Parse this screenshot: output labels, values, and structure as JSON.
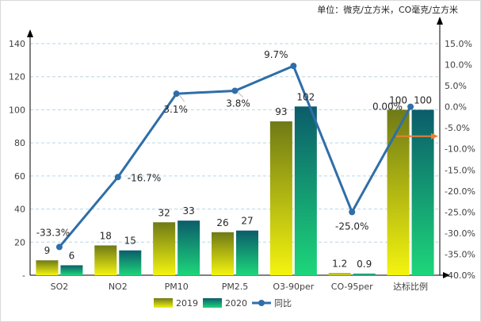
{
  "chart_data": {
    "type": "bar+line",
    "unit_note": "单位：微克/立方米，CO毫克/立方米",
    "categories": [
      "SO2",
      "NO2",
      "PM10",
      "PM2.5",
      "O3-90per",
      "CO-95per",
      "达标比例"
    ],
    "series": [
      {
        "name": "2019",
        "type": "bar",
        "axis": "left",
        "values": [
          9,
          18,
          32,
          26,
          93,
          1.2,
          100
        ],
        "labels": [
          "9",
          "18",
          "32",
          "26",
          "93",
          "1.2",
          "100"
        ],
        "color_top": "#f4f40f",
        "color_bottom": "#6f7a16"
      },
      {
        "name": "2020",
        "type": "bar",
        "axis": "left",
        "values": [
          6,
          15,
          33,
          27,
          102,
          0.9,
          100
        ],
        "labels": [
          "6",
          "15",
          "33",
          "27",
          "102",
          "0.9",
          "100"
        ],
        "color_top": "#1dd67a",
        "color_bottom": "#0b5c6a"
      },
      {
        "name": "同比",
        "type": "line",
        "axis": "right",
        "values": [
          -33.3,
          -16.7,
          3.1,
          3.8,
          9.7,
          -25.0,
          0.0
        ],
        "labels": [
          "-33.3%",
          "-16.7%",
          "3.1%",
          "3.8%",
          "9.7%",
          "-25.0%",
          "0.00%"
        ],
        "color": "#2f6ea8"
      }
    ],
    "y_left": {
      "min": 0,
      "max": 140,
      "step": 20,
      "ticks": [
        "-",
        "20",
        "40",
        "60",
        "80",
        "100",
        "120",
        "140"
      ]
    },
    "y_right": {
      "min": -40,
      "max": 15,
      "step": 5,
      "ticks": [
        "-40.0%",
        "-35.0%",
        "-30.0%",
        "-25.0%",
        "-20.0%",
        "-15.0%",
        "-10.0%",
        "-5.0%",
        "0.0%",
        "5.0%",
        "10.0%",
        "15.0%"
      ]
    },
    "legend": {
      "position": "bottom",
      "items": [
        "2019",
        "2020",
        "同比"
      ]
    },
    "annotation_arrow": {
      "color": "#ed7d31",
      "at_right_value": -7,
      "direction": "right"
    },
    "grid": true
  }
}
